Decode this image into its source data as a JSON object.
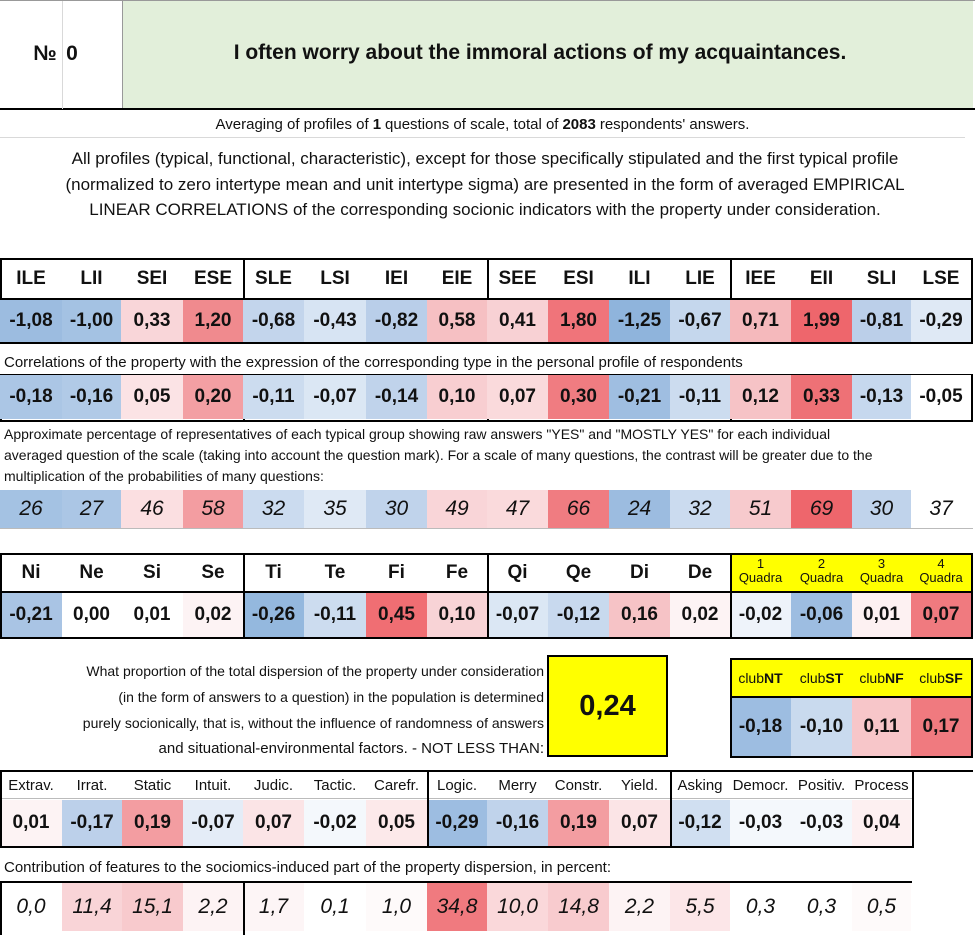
{
  "header": {
    "no_label": "№",
    "no_value": "0",
    "question": "I often worry about the immoral actions of my acquaintances."
  },
  "summary": {
    "prefix": "Averaging of profiles of",
    "questions_count": "1",
    "middle": "questions of scale, total of",
    "respondents": "2083",
    "suffix": "respondents' answers."
  },
  "intro": {
    "line1": "All profiles (typical, functional, characteristic), except for those specifically stipulated and the first typical profile",
    "line2": "(normalized to zero intertype mean and unit intertype sigma) are presented in the form of averaged EMPIRICAL",
    "line3": "LINEAR CORRELATIONS of the corresponding socionic indicators with the property under consideration."
  },
  "types": {
    "headers": [
      "ILE",
      "LII",
      "SEI",
      "ESE",
      "SLE",
      "LSI",
      "IEI",
      "EIE",
      "SEE",
      "ESI",
      "ILI",
      "LIE",
      "IEE",
      "EII",
      "SLI",
      "LSE"
    ],
    "profile": [
      "-1,08",
      "-1,00",
      "0,33",
      "1,20",
      "-0,68",
      "-0,43",
      "-0,82",
      "0,58",
      "0,41",
      "1,80",
      "-1,25",
      "-0,67",
      "0,71",
      "1,99",
      "-0,81",
      "-0,29"
    ],
    "profile_colors": [
      "#9cbce0",
      "#a4c2e3",
      "#f9d6d9",
      "#f08a8e",
      "#c3d5ec",
      "#d7e4f3",
      "#b9cee9",
      "#f6c0c3",
      "#f8d1d4",
      "#f0747a",
      "#8fb4dc",
      "#c5d7ed",
      "#f5b9bc",
      "#ee666c",
      "#bbcfe9",
      "#dfe9f5"
    ],
    "correlation_label": "Correlations of the property with the expression of the corresponding type in the personal profile of respondents",
    "correlations": [
      "-0,18",
      "-0,16",
      "0,05",
      "0,20",
      "-0,11",
      "-0,07",
      "-0,14",
      "0,10",
      "0,07",
      "0,30",
      "-0,21",
      "-0,11",
      "0,12",
      "0,33",
      "-0,13",
      "-0,05"
    ],
    "correlation_colors": [
      "#abc6e5",
      "#b1cae7",
      "#fbe3e5",
      "#f39fa3",
      "#ccdcef",
      "#dbe7f4",
      "#c0d3eb",
      "#f8ced1",
      "#fadadc",
      "#f07c81",
      "#9fbee1",
      "#ccdcef",
      "#f6c3c6",
      "#ee7176",
      "#c6d8ee",
      "#ffffff"
    ],
    "percent_label_line1": "Approximate percentage of representatives of each typical group showing raw answers \"YES\" and \"MOSTLY YES\" for each individual",
    "percent_label_line2": "averaged question of the scale (taking into account the question mark). For a scale of many questions, the contrast will be greater due to the",
    "percent_label_line3": "multiplication of the probabilities of many questions:",
    "percents": [
      "26",
      "27",
      "46",
      "58",
      "32",
      "35",
      "30",
      "49",
      "47",
      "66",
      "24",
      "32",
      "51",
      "69",
      "30",
      "37"
    ],
    "percent_colors": [
      "#a4c2e3",
      "#abc6e5",
      "#fbdfe1",
      "#f39da1",
      "#cbdbef",
      "#dfe9f5",
      "#c0d3eb",
      "#f9d5d8",
      "#fadadc",
      "#f07c81",
      "#9cbce0",
      "#cbdbef",
      "#f7cacd",
      "#ee666c",
      "#c0d3eb",
      "#ffffff"
    ]
  },
  "functions": {
    "headers": [
      "Ni",
      "Ne",
      "Si",
      "Se",
      "Ti",
      "Te",
      "Fi",
      "Fe",
      "Qi",
      "Qe",
      "Di",
      "De"
    ],
    "values": [
      "-0,21",
      "0,00",
      "0,01",
      "0,02",
      "-0,26",
      "-0,11",
      "0,45",
      "0,10",
      "-0,07",
      "-0,12",
      "0,16",
      "0,02"
    ],
    "colors": [
      "#a9c4e4",
      "#ffffff",
      "#ffffff",
      "#fdf3f4",
      "#94b8de",
      "#ccdcef",
      "#f06e73",
      "#f8d3d6",
      "#dbe7f4",
      "#c8d9ee",
      "#f6c3c6",
      "#fdf3f4"
    ]
  },
  "quadras": {
    "numbers": [
      "1",
      "2",
      "3",
      "4"
    ],
    "label": "Quadra",
    "values": [
      "-0,02",
      "-0,06",
      "0,01",
      "0,07"
    ],
    "colors": [
      "#eef3fa",
      "#9dbde1",
      "#fdf1f2",
      "#f07a7f"
    ],
    "header_color": "#ffff00"
  },
  "dispersion": {
    "line1": "What proportion of the total dispersion of the property under consideration",
    "line2": "(in the form of answers to a question) in the population is determined",
    "line3": "purely socionically, that is, without the influence of randomness of answers",
    "line4": "and situational-environmental factors. - NOT LESS THAN:",
    "value": "0,24"
  },
  "clubs": {
    "prefix": "club",
    "names": [
      "NT",
      "ST",
      "NF",
      "SF"
    ],
    "values": [
      "-0,18",
      "-0,10",
      "0,11",
      "0,17"
    ],
    "colors": [
      "#9dbde1",
      "#c9daee",
      "#f7c6c9",
      "#f07a7f"
    ]
  },
  "features": {
    "headers": [
      "Extrav.",
      "Irrat.",
      "Static",
      "Intuit.",
      "Judic.",
      "Tactic.",
      "Carefr.",
      "Logic.",
      "Merry",
      "Constr.",
      "Yield.",
      "Asking",
      "Democr.",
      "Positiv.",
      "Process"
    ],
    "values": [
      "0,01",
      "-0,17",
      "0,19",
      "-0,07",
      "0,07",
      "-0,02",
      "0,05",
      "-0,29",
      "-0,16",
      "0,19",
      "0,07",
      "-0,12",
      "-0,03",
      "-0,03",
      "0,04"
    ],
    "colors": [
      "#fdf3f4",
      "#bcd0ea",
      "#f39da1",
      "#e4ecf7",
      "#fbe4e6",
      "#f4f8fc",
      "#fce9ea",
      "#9dbde1",
      "#c0d3eb",
      "#f39da1",
      "#fbe4e6",
      "#d0dff1",
      "#f4f8fc",
      "#f4f8fc",
      "#fdf0f1"
    ],
    "contribution_label": "Contribution of features to the sociomics-induced part of the property dispersion, in percent:",
    "contributions": [
      "0,0",
      "11,4",
      "15,1",
      "2,2",
      "1,7",
      "0,1",
      "1,0",
      "34,8",
      "10,0",
      "14,8",
      "2,2",
      "5,5",
      "0,3",
      "0,3",
      "0,5"
    ],
    "contribution_colors": [
      "#ffffff",
      "#f9d4d7",
      "#f8cacd",
      "#fdf3f4",
      "#fdf5f6",
      "#ffffff",
      "#fefafa",
      "#f07a7f",
      "#fad8da",
      "#f8cbce",
      "#fdf3f4",
      "#fce6e8",
      "#ffffff",
      "#ffffff",
      "#fefafa"
    ]
  }
}
